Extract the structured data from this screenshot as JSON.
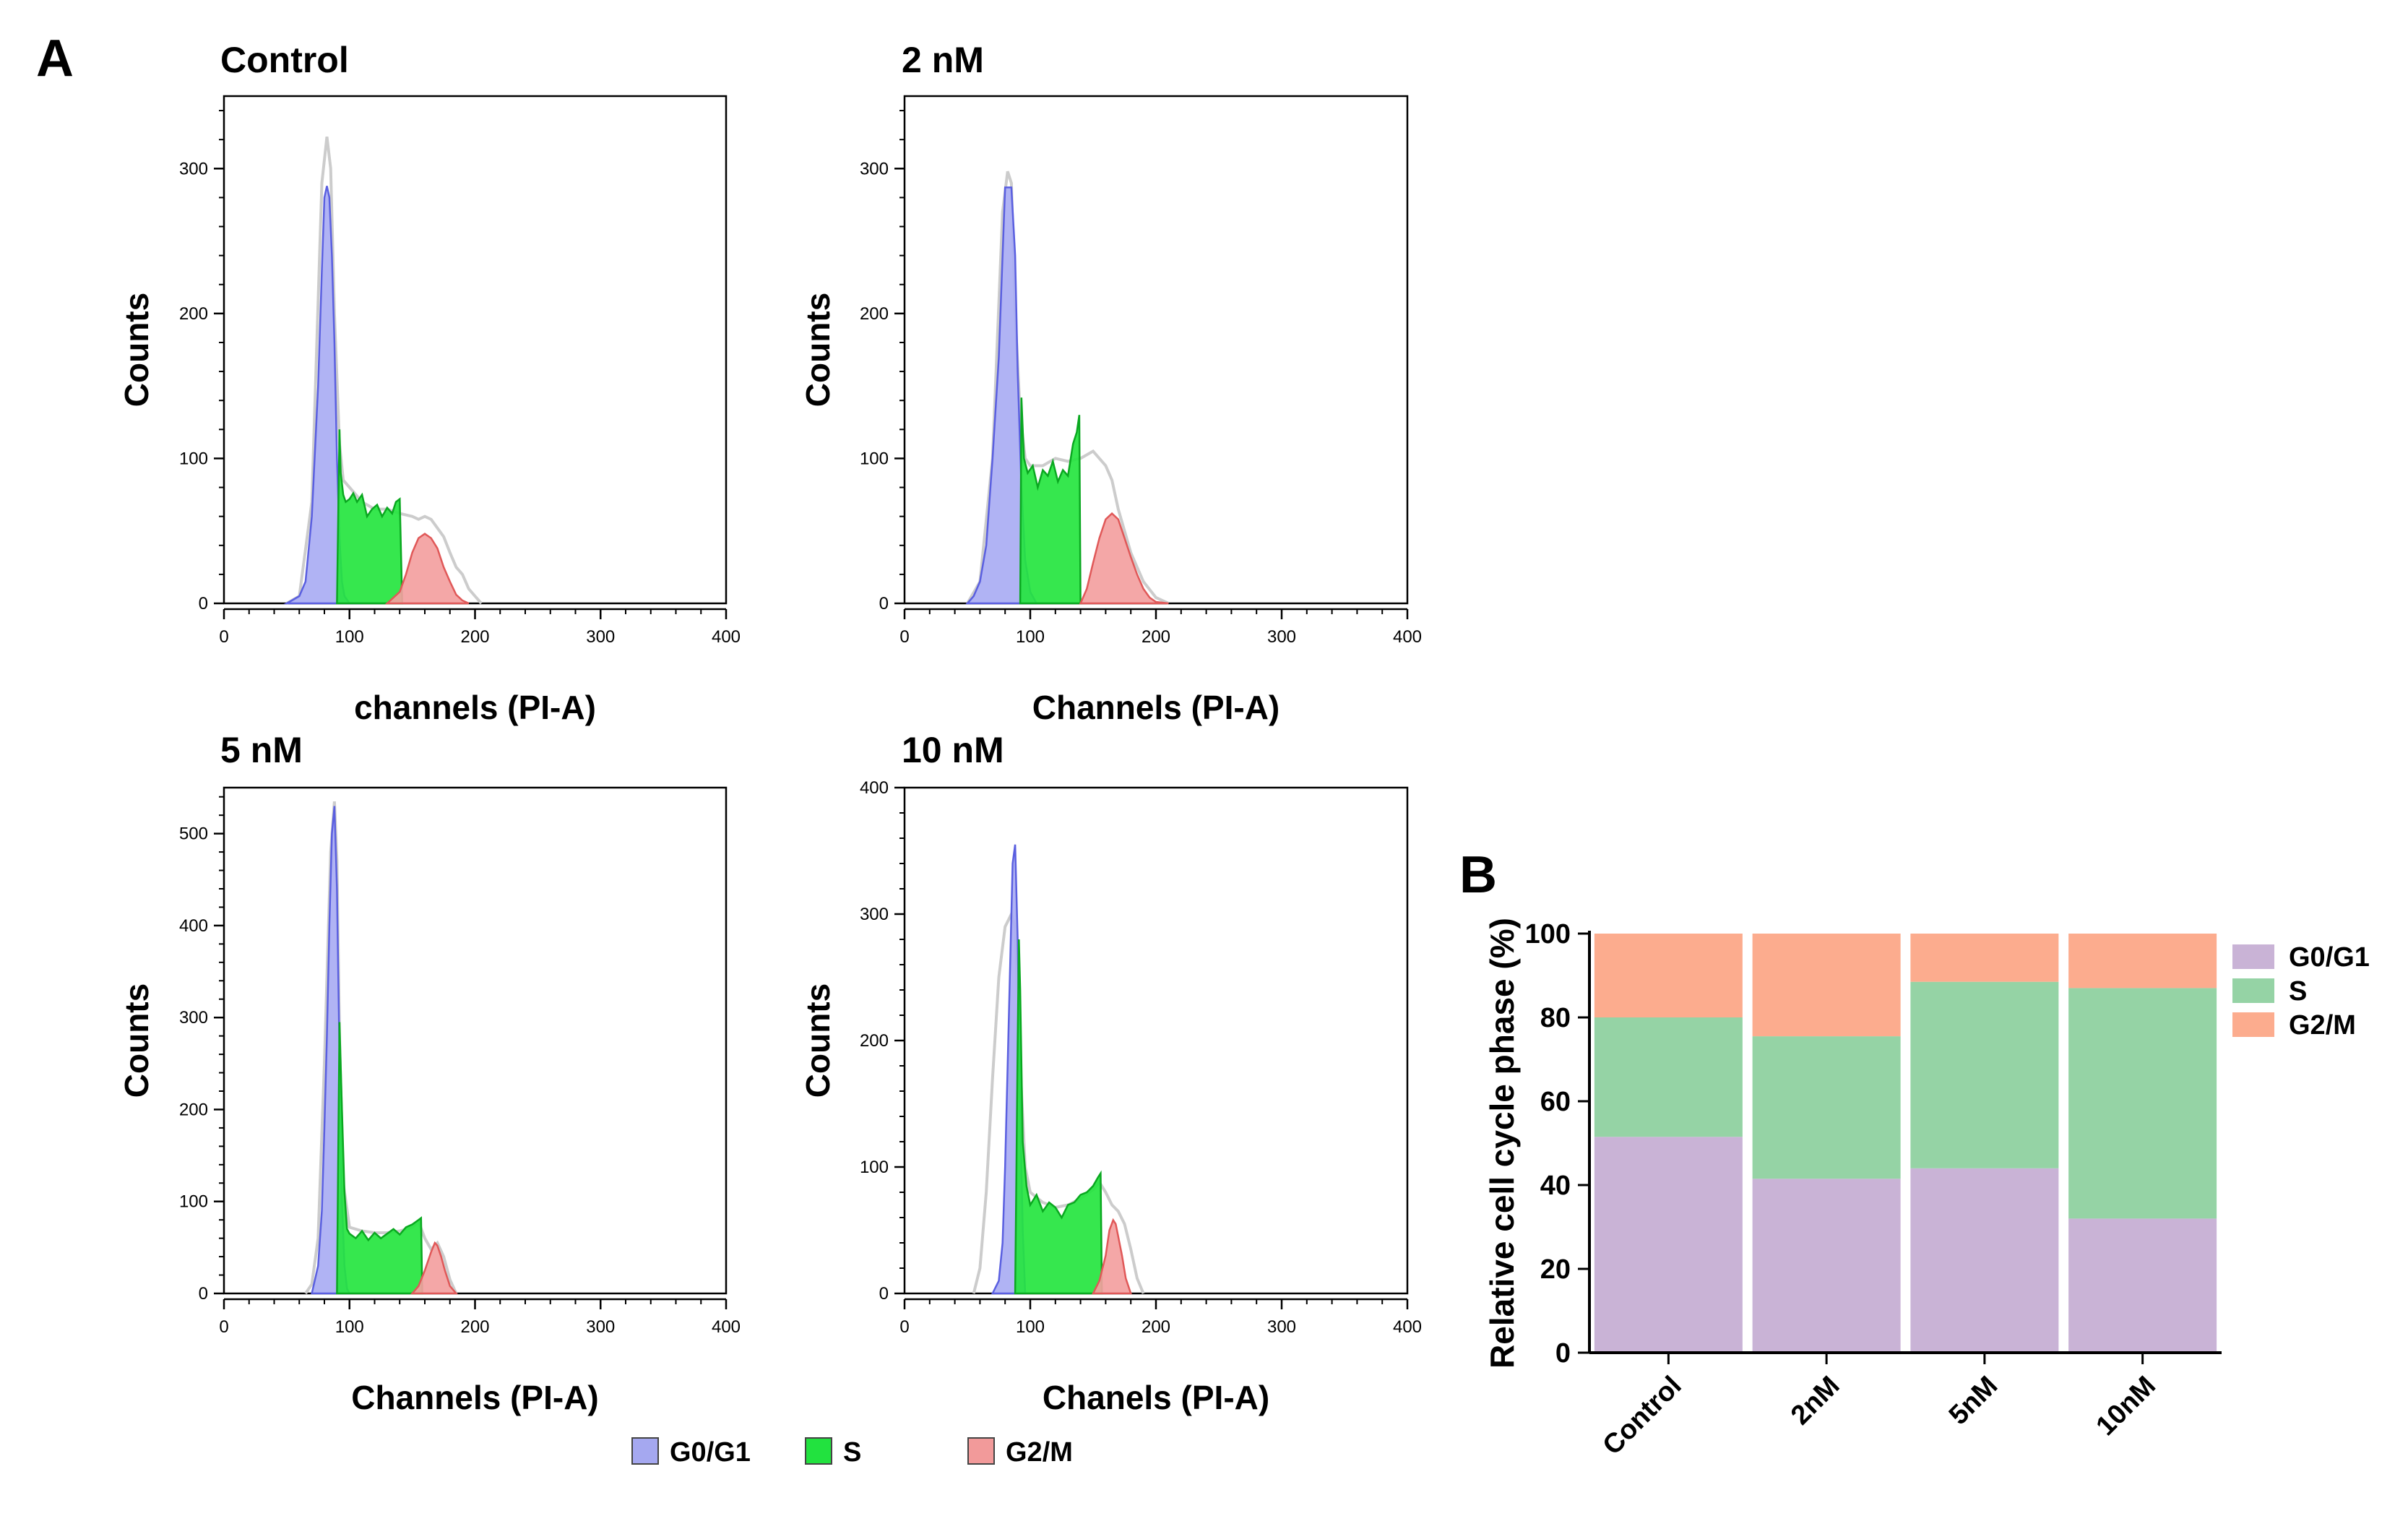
{
  "panel_labels": {
    "a": "A",
    "b": "B"
  },
  "histogram_axis_label_y": "Counts",
  "legend_a": [
    {
      "label": "G0/G1",
      "color": "#a5a8f0"
    },
    {
      "label": "S",
      "color": "#22e23f"
    },
    {
      "label": "G2/M",
      "color": "#f29a9a"
    }
  ],
  "colors": {
    "g0g1_fill": "#a9acf3",
    "g0g1_stroke": "#5a5fe0",
    "s_fill": "#25e53f",
    "s_stroke": "#0aa820",
    "g2m_fill": "#f3a0a0",
    "g2m_stroke": "#e05858",
    "envelope": "#cccccc",
    "b_g0g1": "#c9b3d6",
    "b_s": "#95d3a5",
    "b_g2m": "#fcac8e"
  },
  "chart_data": [
    {
      "type": "area",
      "title": "Control",
      "xlabel": "channels (PI-A)",
      "ylabel": "Counts",
      "xlim": [
        0,
        400
      ],
      "ylim": [
        0,
        350
      ],
      "xticks": [
        0,
        100,
        200,
        300,
        400
      ],
      "yticks": [
        0,
        100,
        200,
        300
      ],
      "series": [
        {
          "name": "G0/G1",
          "x": [
            50,
            60,
            65,
            70,
            75,
            78,
            80,
            82,
            84,
            86,
            88,
            90,
            92,
            94,
            96,
            100,
            105,
            110
          ],
          "y": [
            0,
            5,
            15,
            60,
            150,
            230,
            280,
            288,
            280,
            240,
            180,
            100,
            45,
            15,
            5,
            0,
            0,
            0
          ]
        },
        {
          "name": "S",
          "x": [
            90,
            91,
            92,
            93,
            95,
            97,
            100,
            103,
            106,
            110,
            114,
            118,
            122,
            126,
            130,
            134,
            137,
            140,
            142
          ],
          "y": [
            0,
            60,
            120,
            90,
            75,
            70,
            72,
            76,
            70,
            75,
            60,
            65,
            68,
            60,
            66,
            62,
            70,
            72,
            0
          ]
        },
        {
          "name": "G2/M",
          "x": [
            130,
            140,
            145,
            150,
            155,
            160,
            165,
            170,
            175,
            180,
            185,
            190,
            195
          ],
          "y": [
            0,
            8,
            20,
            35,
            45,
            48,
            45,
            38,
            25,
            15,
            6,
            2,
            0
          ]
        },
        {
          "name": "envelope",
          "x": [
            50,
            60,
            70,
            78,
            82,
            85,
            88,
            92,
            95,
            100,
            110,
            120,
            130,
            140,
            150,
            155,
            160,
            165,
            170,
            175,
            180,
            185,
            190,
            195,
            200,
            205
          ],
          "y": [
            0,
            5,
            70,
            290,
            322,
            300,
            200,
            110,
            85,
            80,
            70,
            65,
            65,
            62,
            60,
            58,
            60,
            58,
            52,
            46,
            35,
            25,
            20,
            10,
            5,
            0
          ]
        }
      ]
    },
    {
      "type": "area",
      "title": "2 nM",
      "xlabel": "Channels (PI-A)",
      "ylabel": "Counts",
      "xlim": [
        0,
        400
      ],
      "ylim": [
        0,
        350
      ],
      "xticks": [
        0,
        100,
        200,
        300,
        400
      ],
      "yticks": [
        0,
        100,
        200,
        300
      ],
      "series": [
        {
          "name": "G0/G1",
          "x": [
            50,
            55,
            60,
            65,
            70,
            75,
            78,
            80,
            85,
            88,
            90,
            93,
            96,
            100,
            105
          ],
          "y": [
            0,
            5,
            15,
            40,
            100,
            170,
            240,
            287,
            287,
            240,
            160,
            80,
            30,
            8,
            0
          ]
        },
        {
          "name": "S",
          "x": [
            92,
            93,
            95,
            98,
            102,
            106,
            110,
            114,
            118,
            122,
            126,
            130,
            134,
            137,
            139,
            140,
            141
          ],
          "y": [
            0,
            142,
            100,
            90,
            95,
            80,
            92,
            88,
            98,
            84,
            92,
            88,
            110,
            118,
            130,
            0,
            0
          ]
        },
        {
          "name": "G2/M",
          "x": [
            140,
            145,
            150,
            155,
            160,
            165,
            170,
            175,
            180,
            185,
            190,
            195,
            200,
            210
          ],
          "y": [
            0,
            10,
            28,
            45,
            58,
            62,
            58,
            45,
            32,
            20,
            10,
            4,
            1,
            0
          ]
        },
        {
          "name": "envelope",
          "x": [
            50,
            60,
            70,
            78,
            82,
            85,
            88,
            92,
            96,
            100,
            110,
            120,
            130,
            140,
            150,
            155,
            160,
            165,
            170,
            180,
            190,
            200,
            210
          ],
          "y": [
            0,
            15,
            100,
            270,
            298,
            290,
            200,
            130,
            100,
            95,
            95,
            100,
            98,
            100,
            105,
            100,
            95,
            85,
            65,
            35,
            15,
            4,
            0
          ]
        }
      ]
    },
    {
      "type": "area",
      "title": "5 nM",
      "xlabel": "Channels (PI-A)",
      "ylabel": "Counts",
      "xlim": [
        0,
        400
      ],
      "ylim": [
        0,
        550
      ],
      "xticks": [
        0,
        100,
        200,
        300,
        400
      ],
      "yticks": [
        0,
        100,
        200,
        300,
        400,
        500
      ],
      "series": [
        {
          "name": "G0/G1",
          "x": [
            70,
            75,
            78,
            80,
            82,
            84,
            86,
            88,
            90,
            92,
            94,
            96,
            98,
            100
          ],
          "y": [
            0,
            30,
            90,
            180,
            280,
            400,
            500,
            530,
            440,
            260,
            100,
            30,
            5,
            0
          ]
        },
        {
          "name": "S",
          "x": [
            90,
            91,
            92,
            94,
            96,
            98,
            100,
            105,
            110,
            115,
            120,
            125,
            130,
            135,
            140,
            145,
            150,
            155,
            157,
            158
          ],
          "y": [
            0,
            150,
            295,
            200,
            110,
            70,
            65,
            60,
            68,
            58,
            66,
            60,
            65,
            70,
            64,
            72,
            75,
            80,
            82,
            0
          ]
        },
        {
          "name": "G2/M",
          "x": [
            150,
            155,
            160,
            165,
            168,
            170,
            173,
            176,
            180,
            185
          ],
          "y": [
            0,
            8,
            25,
            45,
            55,
            52,
            40,
            25,
            8,
            0
          ]
        },
        {
          "name": "envelope",
          "x": [
            65,
            70,
            75,
            80,
            85,
            88,
            90,
            92,
            95,
            100,
            110,
            120,
            130,
            140,
            150,
            155,
            160,
            165,
            170,
            175,
            180,
            185
          ],
          "y": [
            0,
            10,
            60,
            250,
            480,
            535,
            470,
            280,
            120,
            72,
            68,
            66,
            66,
            68,
            72,
            78,
            60,
            48,
            55,
            40,
            15,
            0
          ]
        }
      ]
    },
    {
      "type": "area",
      "title": "10 nM",
      "xlabel": "Chanels (PI-A)",
      "ylabel": "Counts",
      "xlim": [
        0,
        400
      ],
      "ylim": [
        0,
        400
      ],
      "xticks": [
        0,
        100,
        200,
        300,
        400
      ],
      "yticks": [
        0,
        100,
        200,
        300,
        400
      ],
      "series": [
        {
          "name": "G0/G1",
          "x": [
            70,
            75,
            78,
            80,
            82,
            84,
            86,
            88,
            90,
            92,
            94,
            96
          ],
          "y": [
            0,
            10,
            40,
            100,
            180,
            260,
            340,
            355,
            280,
            150,
            50,
            0
          ]
        },
        {
          "name": "S",
          "x": [
            88,
            89,
            90,
            91,
            92,
            94,
            97,
            100,
            105,
            110,
            115,
            120,
            125,
            130,
            135,
            140,
            145,
            150,
            154,
            156,
            157
          ],
          "y": [
            0,
            100,
            200,
            280,
            240,
            120,
            85,
            70,
            78,
            65,
            72,
            68,
            60,
            70,
            72,
            78,
            80,
            85,
            92,
            95,
            0
          ]
        },
        {
          "name": "G2/M",
          "x": [
            150,
            155,
            160,
            163,
            166,
            168,
            170,
            173,
            176,
            180
          ],
          "y": [
            0,
            10,
            30,
            50,
            58,
            55,
            45,
            30,
            12,
            0
          ]
        },
        {
          "name": "envelope",
          "x": [
            55,
            60,
            65,
            70,
            75,
            80,
            85,
            88,
            90,
            93,
            96,
            100,
            110,
            120,
            130,
            140,
            150,
            155,
            160,
            165,
            170,
            175,
            180,
            185,
            190
          ],
          "y": [
            0,
            20,
            80,
            170,
            250,
            290,
            300,
            290,
            230,
            160,
            100,
            80,
            72,
            68,
            70,
            75,
            82,
            88,
            80,
            70,
            65,
            55,
            35,
            12,
            0
          ]
        }
      ]
    },
    {
      "type": "bar",
      "stacked": true,
      "title": "",
      "xlabel": "",
      "ylabel": "Relative cell cycle phase (%)",
      "ylim": [
        0,
        100
      ],
      "yticks": [
        0,
        20,
        40,
        60,
        80,
        100
      ],
      "categories": [
        "Control",
        "2nM",
        "5nM",
        "10nM"
      ],
      "series": [
        {
          "name": "G0/G1",
          "values": [
            51.5,
            41.5,
            44,
            32
          ]
        },
        {
          "name": "S",
          "values": [
            28.5,
            34,
            44.5,
            55
          ]
        },
        {
          "name": "G2/M",
          "values": [
            20,
            24.5,
            11.5,
            13
          ]
        }
      ],
      "legend": "right"
    }
  ]
}
